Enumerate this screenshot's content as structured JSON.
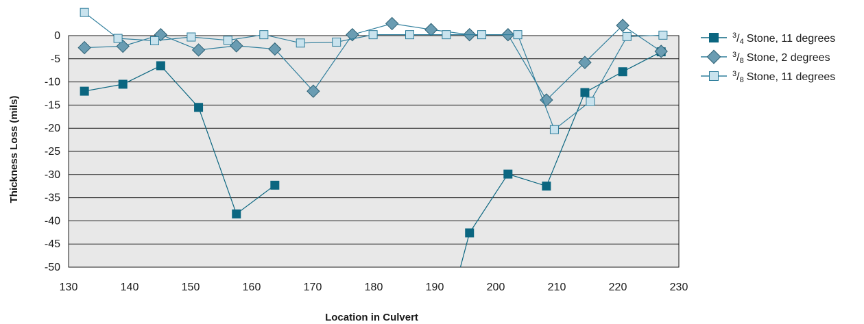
{
  "chart_data": {
    "type": "line",
    "xlabel": "Location in Culvert",
    "ylabel": "Thickness Loss (mils)",
    "xlim": [
      130,
      230
    ],
    "ylim": [
      -50,
      0
    ],
    "x_ticks": [
      "130",
      "140",
      "150",
      "160",
      "170",
      "180",
      "190",
      "200",
      "210",
      "220",
      "230"
    ],
    "y_ticks": [
      "0",
      "-5",
      "-10",
      "-15",
      "-20",
      "-25",
      "-30",
      "-35",
      "-40",
      "-45",
      "-50"
    ],
    "grid": "horizontal",
    "legend_position": "right",
    "plot_background": "#e8e8e8",
    "series": [
      {
        "name": "3/4 Stone, 11 degrees",
        "legend_fraction": "3/4",
        "legend_text": "Stone, 11 degrees",
        "marker": "square",
        "color": "#0b6680",
        "line_color": "#0b6680",
        "segments": [
          [
            [
              132.6,
              -12
            ],
            [
              138.9,
              -10.5
            ],
            [
              145.1,
              -6.5
            ],
            [
              151.3,
              -15.5
            ],
            [
              157.5,
              -38.5
            ],
            [
              163.8,
              -32.3
            ]
          ],
          [
            [
              193.4,
              -54
            ],
            [
              195.7,
              -42.6
            ],
            [
              202.0,
              -29.9
            ],
            [
              208.3,
              -32.5
            ],
            [
              214.6,
              -12.3
            ],
            [
              220.8,
              -7.8
            ],
            [
              227.1,
              -3.5
            ]
          ]
        ]
      },
      {
        "name": "3/8 Stone, 2 degrees",
        "legend_fraction": "3/8",
        "legend_text": "Stone, 2 degrees",
        "marker": "diamond",
        "color": "#6a9cb2",
        "line_color": "#2f7e9c",
        "segments": [
          [
            [
              132.6,
              -2.6
            ],
            [
              138.9,
              -2.3
            ],
            [
              145.1,
              0.2
            ],
            [
              151.3,
              -3.1
            ],
            [
              157.5,
              -2.2
            ],
            [
              163.8,
              -2.9
            ],
            [
              170.1,
              -12.0
            ],
            [
              176.5,
              0.2
            ],
            [
              183.0,
              2.6
            ],
            [
              189.4,
              1.3
            ],
            [
              195.7,
              0.2
            ],
            [
              202.0,
              0.2
            ],
            [
              208.3,
              -13.9
            ],
            [
              214.6,
              -5.8
            ],
            [
              220.8,
              2.2
            ],
            [
              227.1,
              -3.4
            ]
          ]
        ]
      },
      {
        "name": "3/8 Stone, 11 degrees",
        "legend_fraction": "3/8",
        "legend_text": "Stone, 11 degrees",
        "marker": "square",
        "color": "#c9e3ee",
        "line_color": "#2f7e9c",
        "segments": [
          [
            [
              132.6,
              5
            ],
            [
              138.1,
              -0.6
            ],
            [
              144.1,
              -1.1
            ],
            [
              150.1,
              -0.3
            ],
            [
              156.1,
              -1.0
            ],
            [
              162.0,
              0.2
            ],
            [
              168.0,
              -1.6
            ],
            [
              173.9,
              -1.4
            ],
            [
              179.9,
              0.2
            ],
            [
              185.9,
              0.2
            ],
            [
              191.9,
              0.2
            ],
            [
              197.7,
              0.2
            ],
            [
              203.6,
              0.2
            ],
            [
              209.6,
              -20.3
            ],
            [
              215.5,
              -14.2
            ],
            [
              221.5,
              -0.2
            ],
            [
              227.4,
              0.1
            ]
          ]
        ]
      }
    ]
  }
}
